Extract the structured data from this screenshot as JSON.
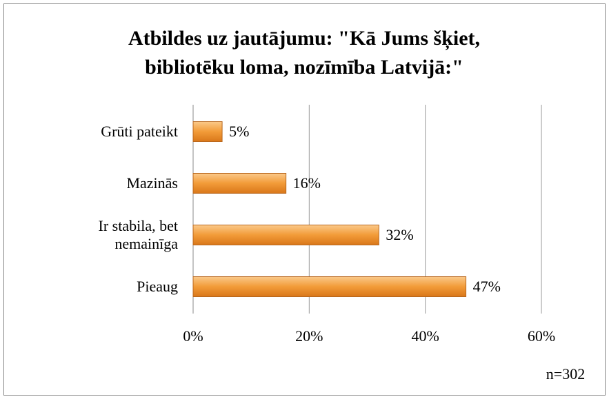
{
  "chart_data": {
    "type": "barh",
    "title": [
      "Atbildes uz jautājumu: \"Kā Jums šķiet,",
      "bibliotēku loma, nozīmība Latvijā:\""
    ],
    "categories": [
      "Grūti pateikt",
      "Mazinās",
      "Ir stabila, bet nemainīga",
      "Pieaug"
    ],
    "values": [
      5,
      16,
      32,
      47
    ],
    "value_labels": [
      "5%",
      "16%",
      "32%",
      "47%"
    ],
    "color": "#f29b38",
    "xlim": [
      0,
      60
    ],
    "xticks": [
      {
        "value": 0,
        "label": "0%"
      },
      {
        "value": 20,
        "label": "20%"
      },
      {
        "value": 40,
        "label": "40%"
      },
      {
        "value": 60,
        "label": "60%"
      }
    ],
    "grid": true,
    "annotation": "n=302"
  }
}
